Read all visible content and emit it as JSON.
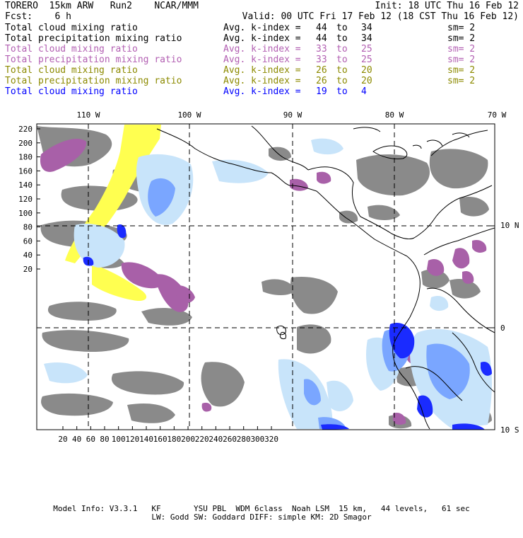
{
  "header": {
    "model": "TORERO  15km ARW   Run2    NCAR/MMM",
    "init": "Init: 18 UTC Thu 16 Feb 12",
    "fcst": "Fcst:    6 h",
    "valid": "Valid: 00 UTC Fri 17 Feb 12 (18 CST Thu 16 Feb 12)"
  },
  "legend": [
    {
      "label": "Total cloud mixing ratio",
      "avg": "Avg. k-index =",
      "from": "44",
      "to": "to",
      "upto": "34",
      "sm": "sm= 2",
      "color": "#000000"
    },
    {
      "label": "Total precipitation mixing ratio",
      "avg": "Avg. k-index =",
      "from": "44",
      "to": "to",
      "upto": "34",
      "sm": "sm= 2",
      "color": "#000000"
    },
    {
      "label": "Total cloud mixing ratio",
      "avg": "Avg. k-index =",
      "from": "33",
      "to": "to",
      "upto": "25",
      "sm": "sm= 2",
      "color": "#b25fb2"
    },
    {
      "label": "Total precipitation mixing ratio",
      "avg": "Avg. k-index =",
      "from": "33",
      "to": "to",
      "upto": "25",
      "sm": "sm= 2",
      "color": "#b25fb2"
    },
    {
      "label": "Total cloud mixing ratio",
      "avg": "Avg. k-index =",
      "from": "26",
      "to": "to",
      "upto": "20",
      "sm": "sm= 2",
      "color": "#8c8a00"
    },
    {
      "label": "Total precipitation mixing ratio",
      "avg": "Avg. k-index =",
      "from": "26",
      "to": "to",
      "upto": "20",
      "sm": "sm= 2",
      "color": "#8c8a00"
    },
    {
      "label": "Total cloud mixing ratio",
      "avg": "Avg. k-index =",
      "from": "19",
      "to": "to",
      "upto": "4",
      "sm": "",
      "color": "#0000ff"
    }
  ],
  "map": {
    "lon_labels": [
      "110 W",
      "100 W",
      "90 W",
      "80 W",
      "70 W"
    ],
    "lat_labels": [
      "10 N",
      "0",
      "10 S"
    ],
    "y_ticks": [
      "220",
      "200",
      "180",
      "160",
      "140",
      "120",
      "100",
      "80",
      "60",
      "40",
      "20"
    ],
    "x_ticks": [
      "20",
      "40",
      "60",
      "80",
      "100",
      "120",
      "140",
      "160",
      "180",
      "200",
      "220",
      "240",
      "260",
      "280",
      "300",
      "320"
    ],
    "colors": {
      "gray": "#8a8a8a",
      "purple": "#a860a8",
      "yellow": "#ffff50",
      "light_blue": "#c8e4fa",
      "mid_blue": "#7aa6ff",
      "blue": "#1a2bff"
    }
  },
  "footer": {
    "line1": "Model Info: V3.3.1   KF       YSU PBL  WDM 6class  Noah LSM  15 km,   44 levels,   61 sec",
    "line2": "LW: Godd SW: Goddard DIFF: simple KM: 2D Smagor"
  }
}
